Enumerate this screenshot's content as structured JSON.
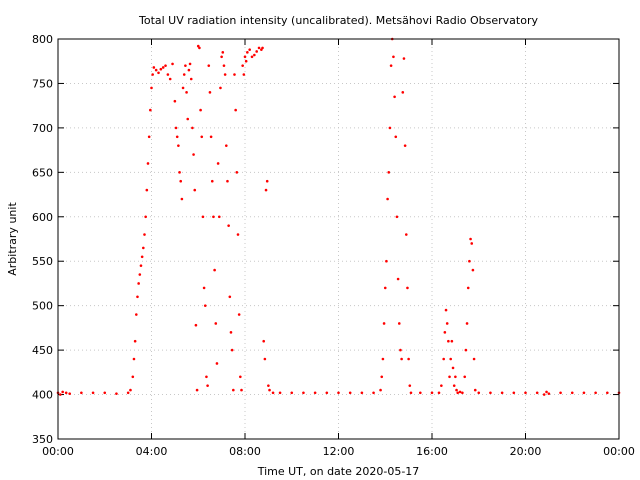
{
  "chart_data": {
    "type": "scatter",
    "title": "Total UV radiation intensity (uncalibrated). Metsähovi Radio Observatory",
    "xlabel": "Time UT, on date 2020-05-17",
    "ylabel": "Arbitrary unit",
    "xlim": [
      0,
      24
    ],
    "ylim": [
      350,
      800
    ],
    "x_ticks": [
      0,
      4,
      8,
      12,
      16,
      20,
      24
    ],
    "x_tick_labels": [
      "00:00",
      "04:00",
      "08:00",
      "12:00",
      "16:00",
      "20:00",
      "00:00"
    ],
    "y_ticks": [
      350,
      400,
      450,
      500,
      550,
      600,
      650,
      700,
      750,
      800
    ],
    "grid": true,
    "legend": "none",
    "marker_color": "#ff0000",
    "series": [
      {
        "x_unit": "hours UT",
        "points": [
          [
            0.0,
            402
          ],
          [
            0.1,
            400
          ],
          [
            0.2,
            403
          ],
          [
            0.35,
            402
          ],
          [
            0.5,
            401
          ],
          [
            1.0,
            402
          ],
          [
            1.5,
            402
          ],
          [
            2.0,
            402
          ],
          [
            2.5,
            401
          ],
          [
            3.0,
            402
          ],
          [
            3.1,
            405
          ],
          [
            3.2,
            420
          ],
          [
            3.25,
            440
          ],
          [
            3.3,
            460
          ],
          [
            3.35,
            490
          ],
          [
            3.4,
            510
          ],
          [
            3.45,
            525
          ],
          [
            3.5,
            535
          ],
          [
            3.55,
            545
          ],
          [
            3.6,
            555
          ],
          [
            3.65,
            565
          ],
          [
            3.7,
            580
          ],
          [
            3.75,
            600
          ],
          [
            3.8,
            630
          ],
          [
            3.85,
            660
          ],
          [
            3.9,
            690
          ],
          [
            3.95,
            720
          ],
          [
            4.0,
            745
          ],
          [
            4.05,
            760
          ],
          [
            4.1,
            768
          ],
          [
            4.2,
            765
          ],
          [
            4.3,
            762
          ],
          [
            4.4,
            766
          ],
          [
            4.5,
            768
          ],
          [
            4.6,
            770
          ],
          [
            4.7,
            760
          ],
          [
            4.8,
            755
          ],
          [
            4.9,
            772
          ],
          [
            5.0,
            730
          ],
          [
            5.05,
            700
          ],
          [
            5.1,
            690
          ],
          [
            5.15,
            680
          ],
          [
            5.2,
            650
          ],
          [
            5.25,
            640
          ],
          [
            5.3,
            620
          ],
          [
            5.35,
            745
          ],
          [
            5.4,
            760
          ],
          [
            5.45,
            770
          ],
          [
            5.5,
            740
          ],
          [
            5.55,
            710
          ],
          [
            5.6,
            765
          ],
          [
            5.65,
            772
          ],
          [
            5.7,
            755
          ],
          [
            5.75,
            700
          ],
          [
            5.8,
            670
          ],
          [
            5.85,
            630
          ],
          [
            5.9,
            478
          ],
          [
            5.95,
            405
          ],
          [
            6.0,
            792
          ],
          [
            6.05,
            790
          ],
          [
            6.1,
            720
          ],
          [
            6.15,
            690
          ],
          [
            6.2,
            600
          ],
          [
            6.25,
            520
          ],
          [
            6.3,
            500
          ],
          [
            6.35,
            420
          ],
          [
            6.4,
            410
          ],
          [
            6.45,
            770
          ],
          [
            6.5,
            740
          ],
          [
            6.55,
            690
          ],
          [
            6.6,
            640
          ],
          [
            6.65,
            600
          ],
          [
            6.7,
            540
          ],
          [
            6.75,
            480
          ],
          [
            6.8,
            435
          ],
          [
            6.85,
            660
          ],
          [
            6.9,
            600
          ],
          [
            6.95,
            745
          ],
          [
            7.0,
            780
          ],
          [
            7.05,
            785
          ],
          [
            7.1,
            770
          ],
          [
            7.15,
            760
          ],
          [
            7.2,
            680
          ],
          [
            7.25,
            640
          ],
          [
            7.3,
            590
          ],
          [
            7.35,
            510
          ],
          [
            7.4,
            470
          ],
          [
            7.45,
            450
          ],
          [
            7.5,
            405
          ],
          [
            7.55,
            760
          ],
          [
            7.6,
            720
          ],
          [
            7.65,
            650
          ],
          [
            7.7,
            580
          ],
          [
            7.75,
            490
          ],
          [
            7.8,
            420
          ],
          [
            7.85,
            405
          ],
          [
            7.9,
            770
          ],
          [
            7.95,
            760
          ],
          [
            8.0,
            780
          ],
          [
            8.05,
            775
          ],
          [
            8.1,
            785
          ],
          [
            8.2,
            788
          ],
          [
            8.3,
            780
          ],
          [
            8.4,
            782
          ],
          [
            8.5,
            786
          ],
          [
            8.6,
            790
          ],
          [
            8.7,
            788
          ],
          [
            8.75,
            790
          ],
          [
            8.8,
            460
          ],
          [
            8.85,
            440
          ],
          [
            8.9,
            630
          ],
          [
            8.95,
            640
          ],
          [
            9.0,
            410
          ],
          [
            9.05,
            405
          ],
          [
            9.2,
            402
          ],
          [
            9.5,
            402
          ],
          [
            10.0,
            402
          ],
          [
            10.5,
            402
          ],
          [
            11.0,
            402
          ],
          [
            11.5,
            402
          ],
          [
            12.0,
            402
          ],
          [
            12.5,
            402
          ],
          [
            13.0,
            402
          ],
          [
            13.5,
            402
          ],
          [
            13.8,
            405
          ],
          [
            13.85,
            420
          ],
          [
            13.9,
            440
          ],
          [
            13.95,
            480
          ],
          [
            14.0,
            520
          ],
          [
            14.05,
            550
          ],
          [
            14.1,
            620
          ],
          [
            14.15,
            650
          ],
          [
            14.2,
            700
          ],
          [
            14.25,
            770
          ],
          [
            14.3,
            800
          ],
          [
            14.35,
            780
          ],
          [
            14.4,
            735
          ],
          [
            14.45,
            690
          ],
          [
            14.5,
            600
          ],
          [
            14.55,
            530
          ],
          [
            14.6,
            480
          ],
          [
            14.65,
            450
          ],
          [
            14.7,
            440
          ],
          [
            14.75,
            740
          ],
          [
            14.8,
            778
          ],
          [
            14.85,
            680
          ],
          [
            14.9,
            580
          ],
          [
            14.95,
            520
          ],
          [
            15.0,
            440
          ],
          [
            15.05,
            410
          ],
          [
            15.1,
            402
          ],
          [
            15.5,
            402
          ],
          [
            16.0,
            402
          ],
          [
            16.3,
            402
          ],
          [
            16.4,
            410
          ],
          [
            16.5,
            440
          ],
          [
            16.55,
            470
          ],
          [
            16.6,
            495
          ],
          [
            16.65,
            480
          ],
          [
            16.7,
            460
          ],
          [
            16.75,
            420
          ],
          [
            16.8,
            440
          ],
          [
            16.85,
            460
          ],
          [
            16.9,
            430
          ],
          [
            16.95,
            410
          ],
          [
            17.0,
            420
          ],
          [
            17.05,
            405
          ],
          [
            17.1,
            402
          ],
          [
            17.2,
            403
          ],
          [
            17.3,
            402
          ],
          [
            17.4,
            420
          ],
          [
            17.45,
            450
          ],
          [
            17.5,
            480
          ],
          [
            17.55,
            520
          ],
          [
            17.6,
            550
          ],
          [
            17.65,
            575
          ],
          [
            17.7,
            570
          ],
          [
            17.75,
            540
          ],
          [
            17.8,
            440
          ],
          [
            17.85,
            405
          ],
          [
            18.0,
            402
          ],
          [
            18.5,
            402
          ],
          [
            19.0,
            402
          ],
          [
            19.5,
            402
          ],
          [
            20.0,
            402
          ],
          [
            20.5,
            402
          ],
          [
            20.8,
            400
          ],
          [
            20.9,
            403
          ],
          [
            21.0,
            401
          ],
          [
            21.5,
            402
          ],
          [
            22.0,
            402
          ],
          [
            22.5,
            402
          ],
          [
            23.0,
            402
          ],
          [
            23.5,
            402
          ],
          [
            24.0,
            402
          ]
        ]
      }
    ]
  }
}
